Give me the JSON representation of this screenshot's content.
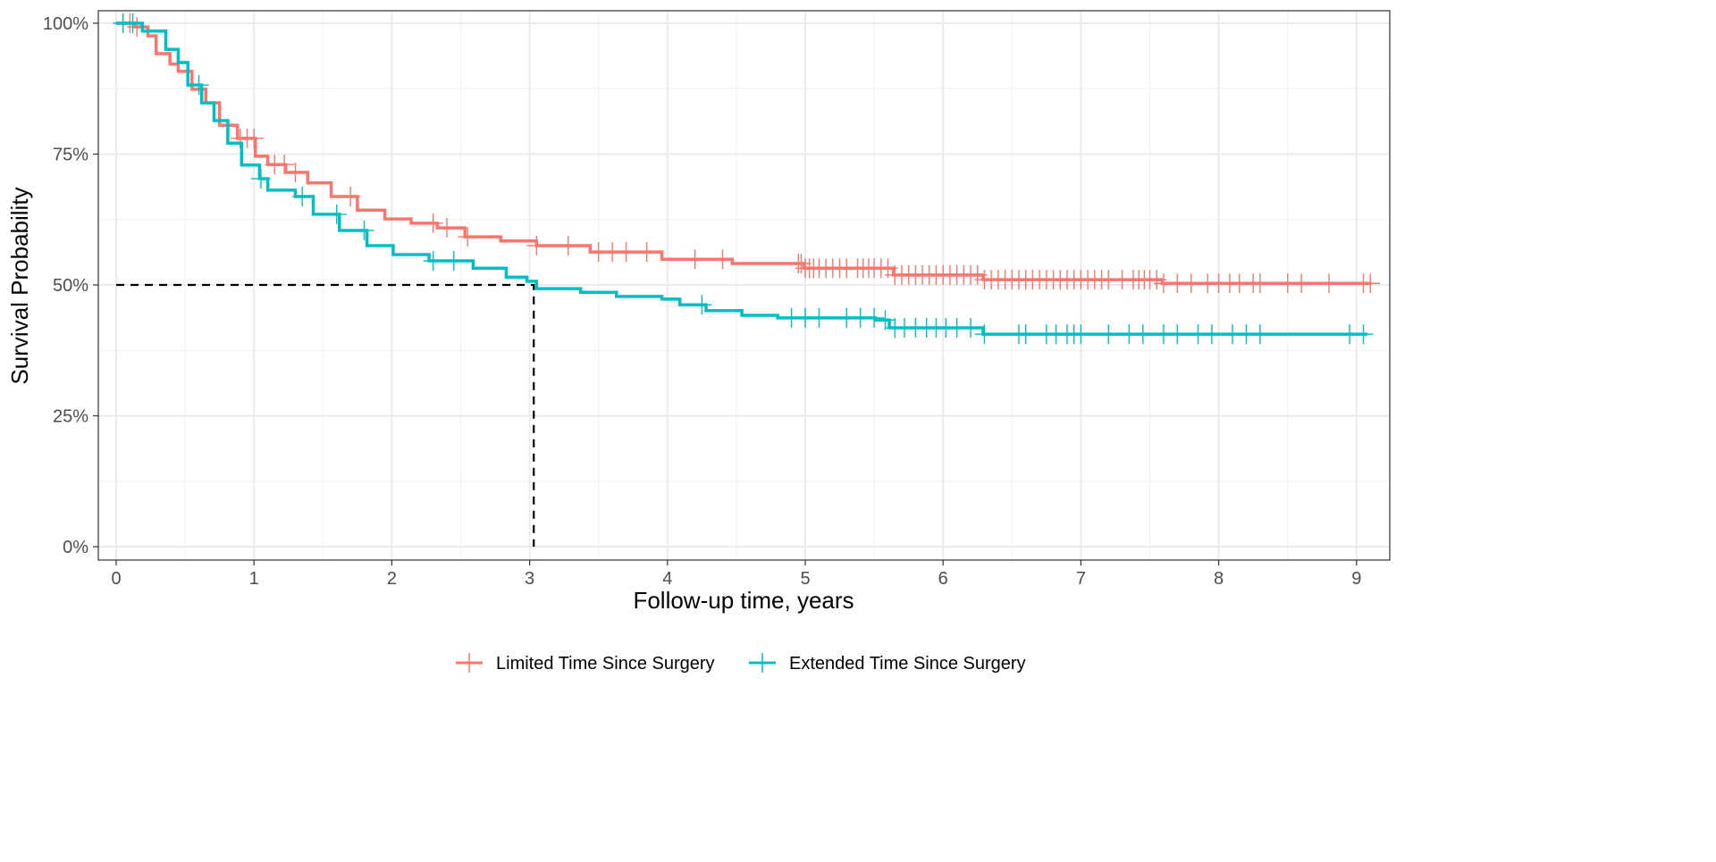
{
  "chart_data": {
    "type": "line",
    "subtype": "kaplan-meier",
    "title": "",
    "xlabel": "Follow-up time, years",
    "ylabel": "Survival Probability",
    "xlim": [
      -0.13,
      9.25
    ],
    "ylim": [
      -0.025,
      1.025
    ],
    "x_ticks": [
      0,
      1,
      2,
      3,
      4,
      5,
      6,
      7,
      8,
      9
    ],
    "x_tick_labels": [
      "0",
      "1",
      "2",
      "3",
      "4",
      "5",
      "6",
      "7",
      "8",
      "9"
    ],
    "y_ticks": [
      0,
      0.25,
      0.5,
      0.75,
      1.0
    ],
    "y_tick_labels": [
      "0%",
      "25%",
      "50%",
      "75%",
      "100%"
    ],
    "grid": true,
    "legend_position": "bottom",
    "median_line": {
      "y": 0.5,
      "x": 3.03
    },
    "series": [
      {
        "name": "Limited Time Since Surgery",
        "color": "#F8766D",
        "x": [
          0,
          0.13,
          0.23,
          0.29,
          0.39,
          0.45,
          0.55,
          0.65,
          0.75,
          0.88,
          1.01,
          1.1,
          1.23,
          1.39,
          1.56,
          1.75,
          1.95,
          2.14,
          2.33,
          2.53,
          2.79,
          3.05,
          3.44,
          3.96,
          4.47,
          4.99,
          5.64,
          6.29,
          7.59,
          9.11
        ],
        "y": [
          1.0,
          0.993,
          0.976,
          0.942,
          0.922,
          0.908,
          0.874,
          0.848,
          0.805,
          0.78,
          0.746,
          0.73,
          0.715,
          0.695,
          0.669,
          0.643,
          0.626,
          0.618,
          0.609,
          0.592,
          0.584,
          0.575,
          0.563,
          0.549,
          0.541,
          0.532,
          0.519,
          0.51,
          0.503,
          0.503
        ],
        "censored": [
          0.1,
          0.15,
          0.9,
          0.95,
          1.0,
          1.15,
          1.22,
          1.3,
          1.7,
          2.3,
          2.4,
          2.55,
          3.05,
          3.28,
          3.5,
          3.6,
          3.7,
          3.85,
          4.2,
          4.4,
          4.95,
          4.97,
          5.0,
          5.03,
          5.06,
          5.1,
          5.15,
          5.2,
          5.25,
          5.3,
          5.38,
          5.42,
          5.46,
          5.5,
          5.55,
          5.6,
          5.65,
          5.7,
          5.75,
          5.8,
          5.85,
          5.9,
          5.95,
          6.0,
          6.05,
          6.1,
          6.15,
          6.2,
          6.25,
          6.3,
          6.35,
          6.4,
          6.45,
          6.5,
          6.55,
          6.6,
          6.65,
          6.7,
          6.75,
          6.8,
          6.85,
          6.9,
          6.95,
          7.0,
          7.05,
          7.1,
          7.15,
          7.2,
          7.3,
          7.38,
          7.42,
          7.46,
          7.5,
          7.55,
          7.6,
          7.7,
          7.8,
          7.92,
          8.0,
          8.08,
          8.15,
          8.25,
          8.3,
          8.5,
          8.6,
          8.8,
          9.05,
          9.1
        ]
      },
      {
        "name": "Extended Time Since Surgery",
        "color": "#00BFC4",
        "x": [
          0,
          0.19,
          0.36,
          0.45,
          0.52,
          0.62,
          0.71,
          0.81,
          0.91,
          1.04,
          1.1,
          1.3,
          1.43,
          1.62,
          1.82,
          2.01,
          2.27,
          2.59,
          2.83,
          2.98,
          3.05,
          3.37,
          3.63,
          3.96,
          4.09,
          4.28,
          4.54,
          4.8,
          5.51,
          5.61,
          6.29,
          9.08
        ],
        "y": [
          1.0,
          0.985,
          0.95,
          0.925,
          0.882,
          0.848,
          0.814,
          0.771,
          0.729,
          0.703,
          0.681,
          0.669,
          0.635,
          0.604,
          0.575,
          0.558,
          0.546,
          0.532,
          0.515,
          0.507,
          0.493,
          0.486,
          0.478,
          0.473,
          0.462,
          0.451,
          0.442,
          0.437,
          0.433,
          0.418,
          0.406,
          0.406
        ],
        "censored": [
          0.05,
          0.12,
          0.6,
          1.05,
          1.35,
          1.6,
          1.8,
          2.3,
          2.45,
          4.25,
          4.9,
          5.0,
          5.1,
          5.3,
          5.4,
          5.5,
          5.58,
          5.65,
          5.72,
          5.8,
          5.88,
          5.95,
          6.02,
          6.1,
          6.2,
          6.3,
          6.55,
          6.6,
          6.75,
          6.82,
          6.9,
          6.95,
          7.0,
          7.2,
          7.35,
          7.45,
          7.6,
          7.7,
          7.85,
          7.95,
          8.1,
          8.2,
          8.3,
          8.95,
          9.05
        ]
      }
    ]
  }
}
